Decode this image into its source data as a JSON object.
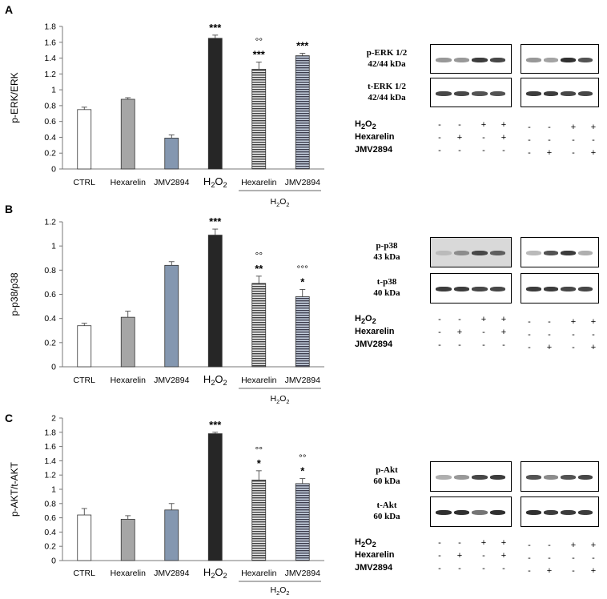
{
  "panels": [
    {
      "letter": "A",
      "chart_data": {
        "type": "bar",
        "ylabel": "p-ERK/ERK",
        "ylim": [
          0,
          1.8
        ],
        "yticks": [
          "0",
          "0.2",
          "0.4",
          "0.6",
          "0.8",
          "1",
          "1.2",
          "1.4",
          "1.6",
          "1.8"
        ],
        "categories": [
          "CTRL",
          "Hexarelin",
          "JMV2894",
          "H2O2",
          "Hexarelin",
          "JMV2894"
        ],
        "group_label": "H2O2",
        "values": [
          0.75,
          0.88,
          0.39,
          1.65,
          1.26,
          1.43
        ],
        "errors": [
          0.03,
          0.02,
          0.04,
          0.04,
          0.09,
          0.03
        ],
        "annotations_star": [
          "",
          "",
          "",
          "***",
          "***",
          "***"
        ],
        "annotations_circle": [
          "",
          "",
          "",
          "",
          "°°",
          ""
        ],
        "bar_styles": [
          "white",
          "gray",
          "blue",
          "black",
          "hatched-gray",
          "hatched-blue"
        ]
      },
      "blot": {
        "rows": [
          {
            "label_line1": "p-ERK 1/2",
            "label_line2": "42/44 kDa"
          },
          {
            "label_line1": "t-ERK 1/2",
            "label_line2": "42/44 kDa"
          }
        ],
        "treatments": [
          "H2O2",
          "Hexarelin",
          "JMV2894"
        ],
        "signs_left": [
          [
            "-",
            "-",
            "+",
            "+"
          ],
          [
            "-",
            "+",
            "-",
            "+"
          ],
          [
            "-",
            "-",
            "-",
            "-"
          ]
        ],
        "signs_right": [
          [
            "-",
            "-",
            "+",
            "+"
          ],
          [
            "-",
            "-",
            "-",
            "-"
          ],
          [
            "-",
            "+",
            "-",
            "+"
          ]
        ]
      }
    },
    {
      "letter": "B",
      "chart_data": {
        "type": "bar",
        "ylabel": "p-p38/p38",
        "ylim": [
          0,
          1.2
        ],
        "yticks": [
          "0",
          "0.2",
          "0.4",
          "0.6",
          "0.8",
          "1",
          "1.2"
        ],
        "categories": [
          "CTRL",
          "Hexarelin",
          "JMV2894",
          "H2O2",
          "Hexarelin",
          "JMV2894"
        ],
        "group_label": "H2O2",
        "values": [
          0.34,
          0.41,
          0.84,
          1.09,
          0.69,
          0.58
        ],
        "errors": [
          0.02,
          0.05,
          0.03,
          0.05,
          0.06,
          0.06
        ],
        "annotations_star": [
          "",
          "",
          "",
          "***",
          "**",
          "*"
        ],
        "annotations_circle": [
          "",
          "",
          "",
          "",
          "°°",
          "°°°"
        ],
        "bar_styles": [
          "white",
          "gray",
          "blue",
          "black",
          "hatched-gray",
          "hatched-blue"
        ]
      },
      "blot": {
        "rows": [
          {
            "label_line1": "p-p38",
            "label_line2": "43 kDa"
          },
          {
            "label_line1": "t-p38",
            "label_line2": "40 kDa"
          }
        ],
        "treatments": [
          "H2O2",
          "Hexarelin",
          "JMV2894"
        ],
        "signs_left": [
          [
            "-",
            "-",
            "+",
            "+"
          ],
          [
            "-",
            "+",
            "-",
            "+"
          ],
          [
            "-",
            "-",
            "-",
            "-"
          ]
        ],
        "signs_right": [
          [
            "-",
            "-",
            "+",
            "+"
          ],
          [
            "-",
            "-",
            "-",
            "-"
          ],
          [
            "-",
            "+",
            "-",
            "+"
          ]
        ]
      }
    },
    {
      "letter": "C",
      "chart_data": {
        "type": "bar",
        "ylabel": "p-AKT/t-AKT",
        "ylim": [
          0,
          2
        ],
        "yticks": [
          "0",
          "0.2",
          "0.4",
          "0.6",
          "0.8",
          "1",
          "1.2",
          "1.4",
          "1.6",
          "1.8",
          "2"
        ],
        "categories": [
          "CTRL",
          "Hexarelin",
          "JMV2894",
          "H2O2",
          "Hexarelin",
          "JMV2894"
        ],
        "group_label": "H2O2",
        "values": [
          0.64,
          0.58,
          0.71,
          1.78,
          1.13,
          1.08
        ],
        "errors": [
          0.09,
          0.05,
          0.09,
          0.02,
          0.13,
          0.07
        ],
        "annotations_star": [
          "",
          "",
          "",
          "***",
          "*",
          "*"
        ],
        "annotations_circle": [
          "",
          "",
          "",
          "",
          "°°",
          "°°"
        ],
        "bar_styles": [
          "white",
          "gray",
          "blue",
          "black",
          "hatched-gray",
          "hatched-blue"
        ]
      },
      "blot": {
        "rows": [
          {
            "label_line1": "p-Akt",
            "label_line2": "60 kDa"
          },
          {
            "label_line1": "t-Akt",
            "label_line2": "60 kDa"
          }
        ],
        "treatments": [
          "H2O2",
          "Hexarelin",
          "JMV2894"
        ],
        "signs_left": [
          [
            "-",
            "-",
            "+",
            "+"
          ],
          [
            "-",
            "+",
            "-",
            "+"
          ],
          [
            "-",
            "-",
            "-",
            "-"
          ]
        ],
        "signs_right": [
          [
            "-",
            "-",
            "+",
            "+"
          ],
          [
            "-",
            "-",
            "-",
            "-"
          ],
          [
            "-",
            "+",
            "-",
            "+"
          ]
        ]
      }
    }
  ],
  "colors": {
    "white": "#ffffff",
    "gray": "#a6a6a6",
    "blue": "#8497b0",
    "black": "#262626",
    "hatched-gray": "#9a9a9a",
    "hatched-blue": "#8497b0"
  }
}
